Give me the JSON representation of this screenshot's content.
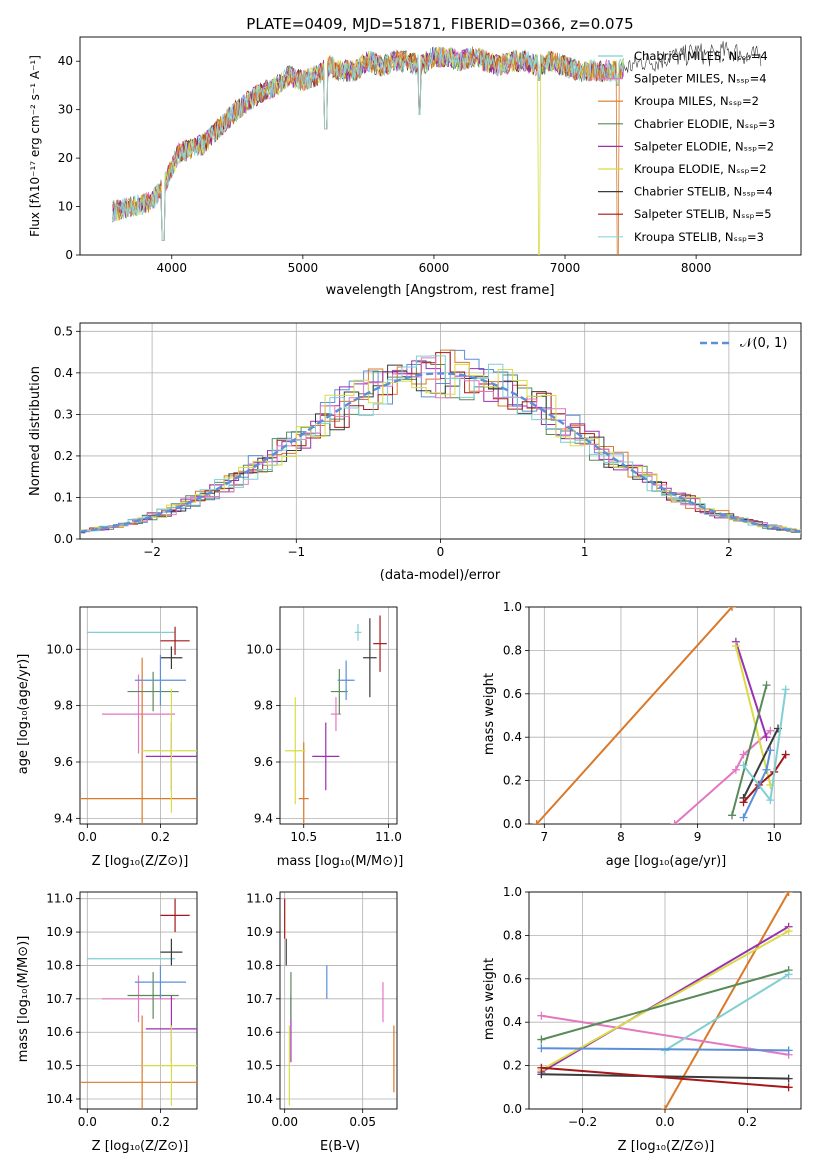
{
  "figure_title": "PLATE=0409, MJD=51871, FIBERID=0366, z=0.075",
  "colors": {
    "miles_chabrier": "#7fcfd3",
    "miles_salpeter": "#e377c2",
    "miles_kroupa": "#d9792a",
    "elodie_chabrier": "#5a8a5a",
    "elodie_salpeter": "#9b30b0",
    "elodie_kroupa": "#d8dc45",
    "stelib_chabrier": "#3b3b3b",
    "stelib_salpeter": "#a31919",
    "stelib_kroupa": "#86d8df",
    "normal_curve": "#5b8fd8",
    "panel_blue": "#5b8fd8",
    "grid": "#b0b0b0"
  },
  "panels": {
    "spectrum": {
      "title": "PLATE=0409, MJD=51871, FIBERID=0366, z=0.075",
      "xlabel": "wavelength [Angstrom, rest frame]",
      "ylabel": "Flux [fλ10⁻¹⁷ erg cm⁻² s⁻¹ A⁻¹]",
      "xticks": [
        "4000",
        "5000",
        "6000",
        "7000",
        "8000"
      ],
      "yticks": [
        "0",
        "10",
        "20",
        "30",
        "40"
      ],
      "legend": [
        "Chabrier MILES, Nₛₛₚ=4",
        "Salpeter MILES, Nₛₛₚ=4",
        "Kroupa MILES, Nₛₛₚ=2",
        "Chabrier ELODIE, Nₛₛₚ=3",
        "Salpeter ELODIE, Nₛₛₚ=2",
        "Kroupa ELODIE, Nₛₛₚ=2",
        "Chabrier STELIB, Nₛₛₚ=4",
        "Salpeter STELIB, Nₛₛₚ=5",
        "Kroupa STELIB, Nₛₛₚ=3"
      ]
    },
    "residuals": {
      "xlabel": "(data-model)/error",
      "ylabel": "Normed distribution",
      "xticks": [
        "−2",
        "−1",
        "0",
        "1",
        "2"
      ],
      "yticks": [
        "0.0",
        "0.1",
        "0.2",
        "0.3",
        "0.4",
        "0.5"
      ],
      "legend": "𝒩(0, 1)"
    },
    "age_z": {
      "xlabel": "Z [log₁₀(Z/Z⊙)]",
      "ylabel": "age  [log₁₀(age/yr)]",
      "xticks": [
        "0.0",
        "0.2"
      ],
      "yticks": [
        "9.4",
        "9.6",
        "9.8",
        "10.0"
      ]
    },
    "age_mass": {
      "xlabel": "mass [log₁₀(M/M⊙)]",
      "xticks": [
        "10.5",
        "11.0"
      ],
      "yticks": [
        "9.4",
        "9.6",
        "9.8",
        "10.0"
      ]
    },
    "weight_age": {
      "xlabel": "age  [log₁₀(age/yr)]",
      "ylabel": "mass weight",
      "xticks": [
        "7",
        "8",
        "9",
        "10"
      ],
      "yticks": [
        "0.0",
        "0.2",
        "0.4",
        "0.6",
        "0.8",
        "1.0"
      ]
    },
    "mass_z": {
      "xlabel": "Z [log₁₀(Z/Z⊙)]",
      "ylabel": "mass [log₁₀(M/M⊙)]",
      "xticks": [
        "0.0",
        "0.2"
      ],
      "yticks": [
        "10.4",
        "10.5",
        "10.6",
        "10.7",
        "10.8",
        "10.9",
        "11.0"
      ]
    },
    "mass_ebv": {
      "xlabel": "E(B-V)",
      "xticks": [
        "0.00",
        "0.05"
      ],
      "yticks": [
        "10.4",
        "10.5",
        "10.6",
        "10.7",
        "10.8",
        "10.9",
        "11.0"
      ]
    },
    "weight_z": {
      "xlabel": "Z [log₁₀(Z/Z⊙)]",
      "ylabel": "mass weight",
      "xticks": [
        "−0.2",
        "0.0",
        "0.2"
      ],
      "yticks": [
        "0.0",
        "0.2",
        "0.4",
        "0.6",
        "0.8",
        "1.0"
      ]
    }
  },
  "chart_data": [
    {
      "type": "line",
      "title": "PLATE=0409, MJD=51871, FIBERID=0366, z=0.075",
      "xlabel": "wavelength [Angstrom, rest frame]",
      "ylabel": "Flux [fλ10⁻¹⁷ erg cm⁻² s⁻¹ A⁻¹]",
      "xlim": [
        3300,
        8800
      ],
      "ylim": [
        0,
        45
      ],
      "grid": false,
      "legend_position": "top-right",
      "series_names": [
        "Chabrier MILES, Nₛₛₚ=4",
        "Salpeter MILES, Nₛₛₚ=4",
        "Kroupa MILES, Nₛₛₚ=2",
        "Chabrier ELODIE, Nₛₛₚ=3",
        "Salpeter ELODIE, Nₛₛₚ=2",
        "Kroupa ELODIE, Nₛₛₚ=2",
        "Chabrier STELIB, Nₛₛₚ=4",
        "Salpeter STELIB, Nₛₛₚ=5",
        "Kroupa STELIB, Nₛₛₚ=3"
      ],
      "envelope": {
        "x": [
          3550,
          3700,
          3850,
          3950,
          4050,
          4150,
          4250,
          4350,
          4500,
          4650,
          4800,
          4900,
          5000,
          5100,
          5200,
          5300,
          5400,
          5500,
          5600,
          5700,
          5800,
          5900,
          6000,
          6100,
          6200,
          6300,
          6400,
          6500,
          6600,
          6700,
          6800,
          6900,
          7000,
          7100,
          7200,
          7300,
          7400,
          7500,
          7600,
          7700,
          7800,
          7900,
          8000,
          8100,
          8200,
          8300,
          8400,
          8500
        ],
        "y": [
          9,
          10,
          11,
          15,
          21,
          22,
          23,
          26,
          30,
          33,
          35,
          37,
          36,
          37,
          39,
          38,
          38,
          40,
          39,
          40,
          40,
          39,
          41,
          41,
          40,
          41,
          40,
          39,
          40,
          40,
          39,
          40,
          39,
          38,
          38,
          38,
          38,
          39,
          40,
          40,
          41,
          41,
          42,
          41,
          42,
          42,
          41,
          41
        ]
      },
      "absorption_dips": [
        {
          "x": 3934,
          "y": 3
        },
        {
          "x": 5175,
          "y": 26
        },
        {
          "x": 5890,
          "y": 29
        },
        {
          "x": 6800,
          "y": 0
        },
        {
          "x": 7400,
          "y": 0
        }
      ]
    },
    {
      "type": "bar",
      "xlabel": "(data-model)/error",
      "ylabel": "Normed distribution",
      "xlim": [
        -2.5,
        2.5
      ],
      "ylim": [
        0,
        0.52
      ],
      "grid": true,
      "legend_position": "top-right",
      "bin_width": 0.1,
      "reference_curve": {
        "name": "𝒩(0, 1)",
        "mean": 0,
        "sigma": 1
      }
    },
    {
      "type": "scatter",
      "xlabel": "Z [log₁₀(Z/Z⊙)]",
      "ylabel": "age  [log₁₀(age/yr)]",
      "xlim": [
        -0.02,
        0.3
      ],
      "ylim": [
        9.38,
        10.15
      ],
      "grid": true,
      "points": [
        {
          "x": 0.12,
          "y": 10.06,
          "xerr": 0.12,
          "yerr": 0.0,
          "c": "miles_chabrier"
        },
        {
          "x": 0.14,
          "y": 9.77,
          "xerr": 0.1,
          "yerr": 0.14,
          "c": "miles_salpeter"
        },
        {
          "x": 0.15,
          "y": 9.47,
          "xerr": 0.3,
          "yerr": 0.5,
          "c": "miles_kroupa",
          "open": true
        },
        {
          "x": 0.18,
          "y": 9.85,
          "xerr": 0.07,
          "yerr": 0.07,
          "c": "elodie_chabrier"
        },
        {
          "x": 0.23,
          "y": 9.62,
          "xerr": 0.07,
          "yerr": 0.12,
          "c": "elodie_salpeter"
        },
        {
          "x": 0.23,
          "y": 9.64,
          "xerr": 0.08,
          "yerr": 0.22,
          "c": "elodie_kroupa"
        },
        {
          "x": 0.23,
          "y": 9.97,
          "xerr": 0.03,
          "yerr": 0.04,
          "c": "stelib_chabrier"
        },
        {
          "x": 0.24,
          "y": 10.03,
          "xerr": 0.04,
          "yerr": 0.05,
          "c": "stelib_salpeter"
        },
        {
          "x": 0.2,
          "y": 9.89,
          "xerr": 0.07,
          "yerr": 0.09,
          "c": "panel_blue"
        }
      ]
    },
    {
      "type": "scatter",
      "xlabel": "mass [log₁₀(M/M⊙)]",
      "ylabel": "",
      "xlim": [
        10.36,
        11.05
      ],
      "ylim": [
        9.38,
        10.15
      ],
      "grid": true,
      "points": [
        {
          "x": 10.5,
          "y": 9.47,
          "xerr": 0.03,
          "yerr": 0.2,
          "c": "miles_kroupa"
        },
        {
          "x": 10.45,
          "y": 9.64,
          "xerr": 0.06,
          "yerr": 0.19,
          "c": "elodie_kroupa"
        },
        {
          "x": 10.63,
          "y": 9.62,
          "xerr": 0.08,
          "yerr": 0.12,
          "c": "elodie_salpeter"
        },
        {
          "x": 10.69,
          "y": 9.77,
          "xerr": 0.03,
          "yerr": 0.06,
          "c": "miles_salpeter"
        },
        {
          "x": 10.71,
          "y": 9.85,
          "xerr": 0.05,
          "yerr": 0.08,
          "c": "elodie_chabrier"
        },
        {
          "x": 10.75,
          "y": 9.89,
          "xerr": 0.05,
          "yerr": 0.07,
          "c": "panel_blue"
        },
        {
          "x": 10.82,
          "y": 10.06,
          "xerr": 0.02,
          "yerr": 0.03,
          "c": "miles_chabrier"
        },
        {
          "x": 10.89,
          "y": 9.97,
          "xerr": 0.04,
          "yerr": 0.14,
          "c": "stelib_chabrier"
        },
        {
          "x": 10.95,
          "y": 10.02,
          "xerr": 0.04,
          "yerr": 0.1,
          "c": "stelib_salpeter"
        }
      ]
    },
    {
      "type": "line",
      "xlabel": "age  [log₁₀(age/yr)]",
      "ylabel": "mass weight",
      "xlim": [
        6.8,
        10.35
      ],
      "ylim": [
        0,
        1
      ],
      "grid": true,
      "series": [
        {
          "c": "miles_kroupa",
          "points": [
            [
              6.9,
              0
            ],
            [
              9.45,
              1
            ]
          ]
        },
        {
          "c": "miles_salpeter",
          "points": [
            [
              8.7,
              0
            ],
            [
              9.5,
              0.25
            ],
            [
              9.6,
              0.32
            ],
            [
              9.95,
              0.43
            ]
          ]
        },
        {
          "c": "elodie_salpeter",
          "points": [
            [
              9.5,
              0.84
            ],
            [
              9.9,
              0.4
            ]
          ]
        },
        {
          "c": "elodie_kroupa",
          "points": [
            [
              9.5,
              0.82
            ],
            [
              9.95,
              0.18
            ]
          ]
        },
        {
          "c": "elodie_chabrier",
          "points": [
            [
              9.45,
              0.04
            ],
            [
              9.9,
              0.64
            ]
          ]
        },
        {
          "c": "stelib_chabrier",
          "points": [
            [
              9.6,
              0.12
            ],
            [
              10.05,
              0.44
            ]
          ]
        },
        {
          "c": "stelib_salpeter",
          "points": [
            [
              9.6,
              0.1
            ],
            [
              9.8,
              0.18
            ],
            [
              10.0,
              0.24
            ],
            [
              10.15,
              0.32
            ]
          ]
        },
        {
          "c": "miles_chabrier",
          "points": [
            [
              9.6,
              0.27
            ],
            [
              9.95,
              0.11
            ],
            [
              10.15,
              0.62
            ]
          ]
        },
        {
          "c": "panel_blue",
          "points": [
            [
              9.6,
              0.03
            ],
            [
              9.9,
              0.25
            ],
            [
              9.95,
              0.34
            ]
          ]
        }
      ]
    },
    {
      "type": "scatter",
      "xlabel": "Z [log₁₀(Z/Z⊙)]",
      "ylabel": "mass [log₁₀(M/M⊙)]",
      "xlim": [
        -0.02,
        0.3
      ],
      "ylim": [
        10.37,
        11.02
      ],
      "grid": true,
      "points": [
        {
          "x": 0.12,
          "y": 10.82,
          "xerr": 0.12,
          "yerr": 0.0,
          "c": "miles_chabrier"
        },
        {
          "x": 0.14,
          "y": 10.7,
          "xerr": 0.1,
          "yerr": 0.07,
          "c": "miles_salpeter"
        },
        {
          "x": 0.15,
          "y": 10.45,
          "xerr": 0.3,
          "yerr": 0.2,
          "c": "miles_kroupa",
          "open": true
        },
        {
          "x": 0.18,
          "y": 10.71,
          "xerr": 0.07,
          "yerr": 0.07,
          "c": "elodie_chabrier"
        },
        {
          "x": 0.23,
          "y": 10.61,
          "xerr": 0.07,
          "yerr": 0.1,
          "c": "elodie_salpeter"
        },
        {
          "x": 0.23,
          "y": 10.5,
          "xerr": 0.08,
          "yerr": 0.12,
          "c": "elodie_kroupa"
        },
        {
          "x": 0.23,
          "y": 10.84,
          "xerr": 0.03,
          "yerr": 0.04,
          "c": "stelib_chabrier"
        },
        {
          "x": 0.24,
          "y": 10.95,
          "xerr": 0.04,
          "yerr": 0.05,
          "c": "stelib_salpeter"
        },
        {
          "x": 0.2,
          "y": 10.75,
          "xerr": 0.07,
          "yerr": 0.05,
          "c": "panel_blue"
        }
      ]
    },
    {
      "type": "scatter",
      "xlabel": "E(B-V)",
      "ylabel": "",
      "xlim": [
        -0.003,
        0.072
      ],
      "ylim": [
        10.37,
        11.02
      ],
      "grid": true,
      "points": [
        {
          "x": 0.0,
          "y": 10.94,
          "yerr": 0.06,
          "c": "stelib_salpeter"
        },
        {
          "x": 0.001,
          "y": 10.84,
          "yerr": 0.04,
          "c": "stelib_chabrier"
        },
        {
          "x": 0.003,
          "y": 10.5,
          "yerr": 0.12,
          "c": "elodie_kroupa"
        },
        {
          "x": 0.004,
          "y": 10.61,
          "yerr": 0.1,
          "c": "elodie_salpeter"
        },
        {
          "x": 0.004,
          "y": 10.71,
          "yerr": 0.07,
          "c": "elodie_chabrier"
        },
        {
          "x": 0.027,
          "y": 10.75,
          "yerr": 0.05,
          "c": "panel_blue"
        },
        {
          "x": 0.063,
          "y": 10.69,
          "yerr": 0.06,
          "c": "miles_salpeter"
        },
        {
          "x": 0.07,
          "y": 10.52,
          "yerr": 0.1,
          "c": "miles_kroupa"
        }
      ]
    },
    {
      "type": "line",
      "xlabel": "Z [log₁₀(Z/Z⊙)]",
      "ylabel": "mass weight",
      "xlim": [
        -0.33,
        0.33
      ],
      "ylim": [
        0,
        1
      ],
      "grid": true,
      "series": [
        {
          "c": "miles_kroupa",
          "points": [
            [
              0.0,
              0
            ],
            [
              0.3,
              1
            ]
          ]
        },
        {
          "c": "miles_salpeter",
          "points": [
            [
              -0.3,
              0.43
            ],
            [
              0.3,
              0.25
            ]
          ]
        },
        {
          "c": "elodie_salpeter",
          "points": [
            [
              -0.3,
              0.17
            ],
            [
              0.3,
              0.84
            ]
          ]
        },
        {
          "c": "elodie_kroupa",
          "points": [
            [
              -0.3,
              0.18
            ],
            [
              0.3,
              0.82
            ]
          ]
        },
        {
          "c": "elodie_chabrier",
          "points": [
            [
              -0.3,
              0.32
            ],
            [
              0.3,
              0.64
            ]
          ]
        },
        {
          "c": "stelib_chabrier",
          "points": [
            [
              -0.3,
              0.16
            ],
            [
              0.3,
              0.14
            ]
          ]
        },
        {
          "c": "stelib_salpeter",
          "points": [
            [
              -0.3,
              0.19
            ],
            [
              0.3,
              0.1
            ]
          ]
        },
        {
          "c": "miles_chabrier",
          "points": [
            [
              0.0,
              0.27
            ],
            [
              0.3,
              0.62
            ]
          ]
        },
        {
          "c": "panel_blue",
          "points": [
            [
              -0.3,
              0.28
            ],
            [
              0.3,
              0.27
            ]
          ]
        }
      ]
    }
  ]
}
